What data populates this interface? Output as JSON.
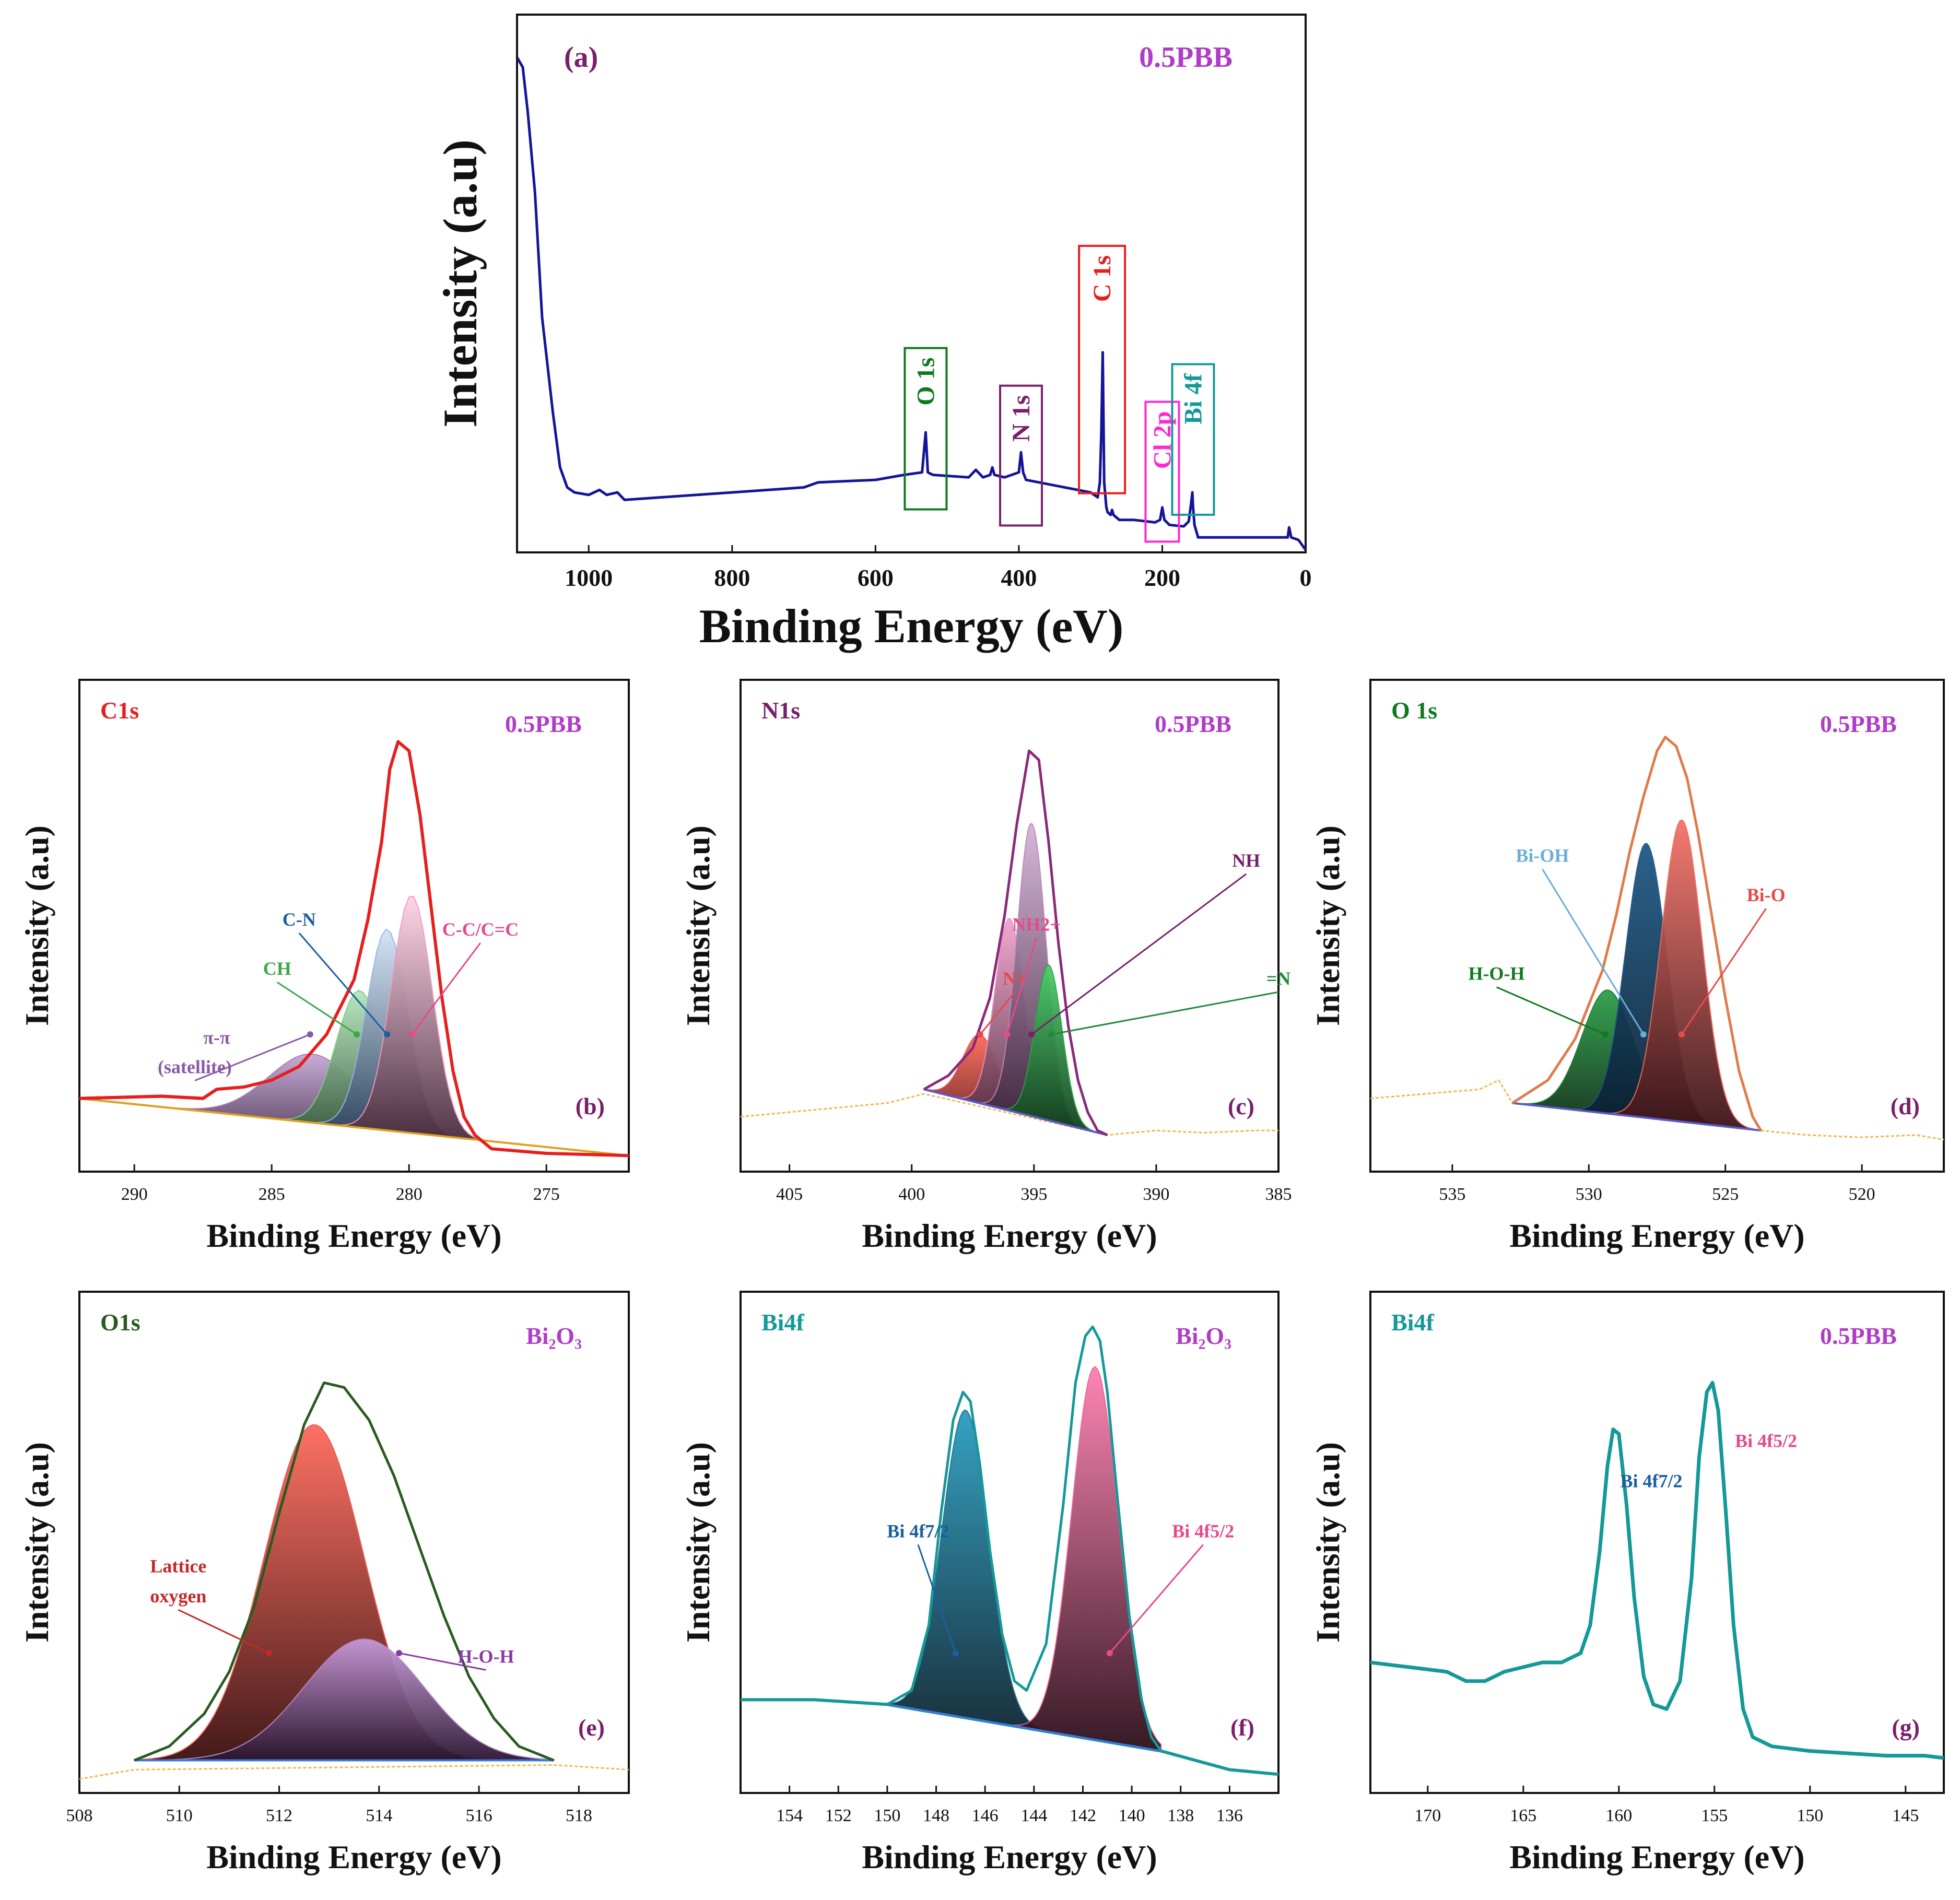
{
  "colors": {
    "sample": "#b03cc8",
    "panel_letter": "#7a1f6a",
    "survey_line": "#14149a",
    "c1s": "#e61e1e",
    "n1s": "#7a1f6a",
    "o1s": "#0e7a1e",
    "bi4f": "#149898",
    "cl2p": "#ff28d2",
    "baseline_orange": "#f0b84a"
  },
  "chart_data": [
    {
      "id": "a",
      "type": "line",
      "panel_label": "(a)",
      "sample_label": "0.5PBB",
      "xlabel": "Binding Energy (eV)",
      "ylabel": "Intensity (a.u)",
      "xlim": [
        1100,
        0
      ],
      "ylim": [
        0,
        100
      ],
      "xticks": [
        1000,
        800,
        600,
        400,
        200,
        0
      ],
      "series": [
        {
          "name": "survey",
          "x": [
            1100,
            1092,
            1085,
            1075,
            1065,
            1050,
            1040,
            1030,
            1020,
            1000,
            985,
            975,
            960,
            950,
            900,
            800,
            700,
            680,
            600,
            560,
            535,
            530,
            527,
            520,
            470,
            460,
            450,
            440,
            437,
            434,
            420,
            400,
            397,
            394,
            390,
            300,
            290,
            287,
            285,
            283,
            281,
            278,
            276,
            272,
            270,
            268,
            260,
            240,
            210,
            203,
            200,
            197,
            190,
            170,
            163,
            160,
            158,
            157,
            155,
            153,
            150,
            100,
            50,
            30,
            25,
            23,
            20,
            10,
            0
          ],
          "y": [
            99,
            97,
            88,
            72,
            47,
            28,
            17,
            13,
            12,
            11.5,
            12.5,
            11.5,
            12,
            10.5,
            11,
            12,
            13,
            14,
            14.5,
            15.5,
            16,
            24,
            16,
            15.5,
            15,
            16.5,
            15,
            15.5,
            17,
            15.5,
            15,
            16,
            20,
            16,
            14.5,
            12,
            11,
            14,
            24,
            40,
            14,
            9,
            8,
            7.5,
            8.5,
            7.5,
            6.5,
            6.5,
            6,
            6.5,
            9,
            6.5,
            5.5,
            5.2,
            6.2,
            9.5,
            12,
            9,
            5.5,
            4.5,
            3,
            3,
            3,
            3,
            3,
            5,
            3,
            2.5,
            0.5
          ]
        }
      ],
      "annotations": [
        {
          "text": "O 1s",
          "x": 530,
          "color": "#0e7a1e"
        },
        {
          "text": "N 1s",
          "x": 397,
          "color": "#7a1f6a"
        },
        {
          "text": "C 1s",
          "x": 284,
          "color": "#e61e1e"
        },
        {
          "text": "Cl 2p",
          "x": 200,
          "color": "#ff28d2"
        },
        {
          "text": "Bi 4f",
          "x": 157,
          "color": "#149898"
        }
      ]
    },
    {
      "id": "b",
      "type": "area",
      "element_label": "C1s",
      "sample_label": "0.5PBB",
      "panel_label": "(b)",
      "xlabel": "Binding Energy (eV)",
      "ylabel": "Intensity (a.u)",
      "xlim": [
        292,
        272
      ],
      "ylim": [
        0,
        100
      ],
      "xticks": [
        290,
        285,
        280,
        275
      ],
      "envelope": {
        "x": [
          292,
          289,
          287.5,
          287,
          286,
          285,
          284,
          283,
          282,
          281.5,
          281,
          280.7,
          280.4,
          280,
          279.6,
          279.2,
          278.8,
          278.4,
          278,
          277.6,
          277,
          275,
          272
        ],
        "y": [
          16,
          16.5,
          16,
          18,
          18.5,
          20,
          23,
          30,
          42,
          55,
          72,
          88,
          94,
          92,
          78,
          58,
          38,
          22,
          12,
          8,
          5,
          4,
          3.5
        ]
      },
      "components": [
        {
          "name": "pi-pi (satellite)",
          "center": 283.5,
          "height": 15,
          "width": 1.6,
          "color": "#a27eb8"
        },
        {
          "name": "CH",
          "center": 281.8,
          "height": 30,
          "width": 0.85,
          "color": "#7ccf86"
        },
        {
          "name": "C-N",
          "center": 280.8,
          "height": 44,
          "width": 0.75,
          "color": "#8fb6e6"
        },
        {
          "name": "C-C/C=C",
          "center": 279.9,
          "height": 52,
          "width": 0.75,
          "color": "#f299c0"
        }
      ],
      "annotations": [
        {
          "text": "C-N",
          "color": "#1a5f9e",
          "target": 280.8
        },
        {
          "text": "CH",
          "color": "#3ca84a",
          "target": 281.9
        },
        {
          "text": "C-C/C=C",
          "color": "#e6498c",
          "target": 279.9
        },
        {
          "text": "π-π",
          "color": "#8a5aa6",
          "target": 283.6
        },
        {
          "text": "(satellite)",
          "color": "#8a5aa6",
          "target": 283.6
        }
      ]
    },
    {
      "id": "c",
      "type": "area",
      "element_label": "N1s",
      "sample_label": "0.5PBB",
      "panel_label": "(c)",
      "xlabel": "Binding Energy (eV)",
      "ylabel": "Intensity (a.u)",
      "xlim": [
        407,
        385
      ],
      "ylim": [
        0,
        100
      ],
      "xticks": [
        405,
        400,
        395,
        390,
        385
      ],
      "envelope": {
        "x": [
          399.5,
          398.5,
          397.5,
          396.8,
          396.2,
          395.7,
          395.2,
          394.8,
          394.4,
          394,
          393.6,
          393.2,
          392.8,
          392.4,
          392
        ],
        "y": [
          18,
          21,
          27,
          38,
          56,
          76,
          92,
          90,
          72,
          50,
          32,
          20,
          13,
          9,
          8
        ]
      },
      "noise": {
        "x": [
          407,
          405,
          403,
          401,
          399.5,
          392,
          390,
          388,
          386,
          385
        ],
        "y": [
          12,
          13,
          14,
          15,
          17,
          8,
          9,
          8.5,
          9,
          9
        ]
      },
      "components": [
        {
          "name": "N+",
          "center": 397.2,
          "height": 15,
          "width": 0.7,
          "color": "#e44a4a"
        },
        {
          "name": "NH2+",
          "center": 396.0,
          "height": 42,
          "width": 0.6,
          "color": "#e88cc0"
        },
        {
          "name": "NH",
          "center": 395.1,
          "height": 64,
          "width": 0.6,
          "color": "#b58ab8"
        },
        {
          "name": "=N",
          "center": 394.4,
          "height": 34,
          "width": 0.55,
          "color": "#2ea04a"
        }
      ],
      "annotations": [
        {
          "text": "NH",
          "color": "#7a1f6a",
          "target": 395.1
        },
        {
          "text": "NH2+",
          "color": "#e6498c",
          "target": 396.1
        },
        {
          "text": "N+",
          "color": "#e44a4a",
          "target": 397.2
        },
        {
          "text": "=N",
          "color": "#1f8a3a",
          "target": 394.3
        }
      ]
    },
    {
      "id": "d",
      "type": "area",
      "element_label": "O 1s",
      "sample_label": "0.5PBB",
      "panel_label": "(d)",
      "xlabel": "Binding Energy (eV)",
      "ylabel": "Intensity (a.u)",
      "xlim": [
        538,
        517
      ],
      "ylim": [
        0,
        100
      ],
      "xticks": [
        535,
        530,
        525,
        520
      ],
      "envelope": {
        "x": [
          532.8,
          531.5,
          530.5,
          529.5,
          529,
          528.5,
          528,
          527.5,
          527.2,
          526.8,
          526.4,
          526,
          525.5,
          525,
          524.5,
          524,
          523.7
        ],
        "y": [
          15,
          20,
          29,
          44,
          56,
          70,
          82,
          92,
          95,
          93,
          86,
          74,
          56,
          38,
          22,
          12,
          9
        ]
      },
      "noise": {
        "x": [
          538,
          536,
          534,
          533.3,
          532.8,
          523.7,
          522,
          520,
          518,
          517
        ],
        "y": [
          16,
          17,
          18,
          20,
          15,
          9,
          8,
          7.5,
          8,
          7
        ]
      },
      "components": [
        {
          "name": "H-O-H",
          "center": 529.3,
          "height": 27,
          "width": 0.95,
          "color": "#1b7a35"
        },
        {
          "name": "Bi-OH",
          "center": 527.9,
          "height": 60,
          "width": 0.75,
          "color": "#1d5a86"
        },
        {
          "name": "Bi-O",
          "center": 526.6,
          "height": 66,
          "width": 0.75,
          "color": "#f06a5c"
        }
      ],
      "annotations": [
        {
          "text": "Bi-OH",
          "color": "#6aaed8",
          "target": 528.0
        },
        {
          "text": "Bi-O",
          "color": "#e84a4a",
          "target": 526.6
        },
        {
          "text": "H-O-H",
          "color": "#0e7a1e",
          "target": 529.4
        }
      ]
    },
    {
      "id": "e",
      "type": "area",
      "element_label": "O1s",
      "sample_label": "Bi₂O₃",
      "panel_label": "(e)",
      "xlabel": "Binding Energy (eV)",
      "ylabel": "Intensity (a.u)",
      "xlim": [
        508,
        519
      ],
      "ylim": [
        0,
        100
      ],
      "xticks": [
        508,
        510,
        512,
        514,
        516,
        518
      ],
      "envelope": {
        "x": [
          509.1,
          509.8,
          510.5,
          511,
          511.5,
          512,
          512.5,
          512.9,
          513.3,
          513.8,
          514.3,
          514.8,
          515.3,
          515.8,
          516.3,
          516.8,
          517.5
        ],
        "y": [
          7,
          10,
          17,
          26,
          40,
          60,
          79,
          88,
          87,
          80,
          68,
          53,
          38,
          25,
          16,
          10,
          7
        ]
      },
      "noise": {
        "x": [
          508,
          509.1,
          517.5,
          519
        ],
        "y": [
          3,
          5,
          6,
          5
        ]
      },
      "components": [
        {
          "name": "Lattice oxygen",
          "center": 512.7,
          "height": 72,
          "width": 1.0,
          "color": "#e8534a"
        },
        {
          "name": "H-O-H",
          "center": 513.7,
          "height": 26,
          "width": 1.2,
          "color": "#b88cc8"
        }
      ],
      "annotations": [
        {
          "text": "Lattice",
          "color": "#c62828",
          "target": 511.8
        },
        {
          "text": "oxygen",
          "color": "#c62828",
          "target": 511.8
        },
        {
          "text": "H-O-H",
          "color": "#8a3aa6",
          "target": 514.4
        }
      ]
    },
    {
      "id": "f",
      "type": "area",
      "element_label": "Bi4f",
      "sample_label": "Bi₂O₃",
      "panel_label": "(f)",
      "xlabel": "Binding Energy (eV)",
      "ylabel": "Intensity (a.u)",
      "xlim": [
        156,
        134
      ],
      "ylim": [
        0,
        100
      ],
      "xticks": [
        154,
        152,
        150,
        148,
        146,
        144,
        142,
        140,
        138,
        136
      ],
      "envelope": {
        "x": [
          150,
          149,
          148.3,
          147.8,
          147.3,
          146.9,
          146.6,
          146.2,
          145.8,
          145.3,
          144.8,
          144.3,
          143.5,
          142.8,
          142.3,
          141.9,
          141.6,
          141.3,
          141,
          140.6,
          140.1,
          139.6,
          139.2,
          138.8
        ],
        "y": [
          19,
          22,
          36,
          60,
          80,
          86,
          84,
          70,
          52,
          34,
          24,
          22,
          32,
          62,
          88,
          98,
          100,
          97,
          86,
          64,
          38,
          20,
          12,
          9
        ]
      },
      "noise": {
        "x": [
          156,
          153,
          150,
          138.8,
          136,
          134
        ],
        "y": [
          20,
          20,
          19,
          9,
          5,
          4
        ]
      },
      "components": [
        {
          "name": "Bi 4f7/2",
          "center": 146.8,
          "height": 66,
          "width": 0.95,
          "color": "#1e6f86"
        },
        {
          "name": "Bi 4f5/2",
          "center": 141.5,
          "height": 80,
          "width": 0.95,
          "color": "#e86090"
        }
      ],
      "annotations": [
        {
          "text": "Bi 4f7/2",
          "color": "#1a5f9e",
          "target": 147.2
        },
        {
          "text": "Bi 4f5/2",
          "color": "#e6498c",
          "target": 140.9
        }
      ]
    },
    {
      "id": "g",
      "type": "line",
      "element_label": "Bi4f",
      "sample_label": "0.5PBB",
      "panel_label": "(g)",
      "xlabel": "Binding Energy (eV)",
      "ylabel": "Intensity (a.u)",
      "xlim": [
        173,
        143
      ],
      "ylim": [
        0,
        100
      ],
      "xticks": [
        170,
        165,
        160,
        155,
        150,
        145
      ],
      "series": [
        {
          "name": "Bi4f",
          "x": [
            173,
            171,
            169,
            168,
            167,
            166,
            165,
            164,
            163,
            162,
            161.5,
            161,
            160.6,
            160.3,
            160,
            159.6,
            159.2,
            158.7,
            158.2,
            157.5,
            156.8,
            156.2,
            155.8,
            155.4,
            155.1,
            154.8,
            154.4,
            154,
            153.5,
            153,
            152,
            150,
            148,
            146,
            144,
            143
          ],
          "y": [
            28,
            27,
            26,
            24,
            24,
            26,
            27,
            28,
            28,
            30,
            36,
            52,
            70,
            78,
            77,
            62,
            42,
            25,
            19,
            18,
            24,
            46,
            72,
            86,
            88,
            82,
            60,
            36,
            18,
            12,
            10,
            9,
            8.5,
            8,
            8,
            7.5
          ]
        }
      ],
      "annotations": [
        {
          "text": "Bi 4f7/2",
          "color": "#1a5f9e",
          "target": 160.2
        },
        {
          "text": "Bi 4f5/2",
          "color": "#e6498c",
          "target": 155.2
        }
      ]
    }
  ]
}
